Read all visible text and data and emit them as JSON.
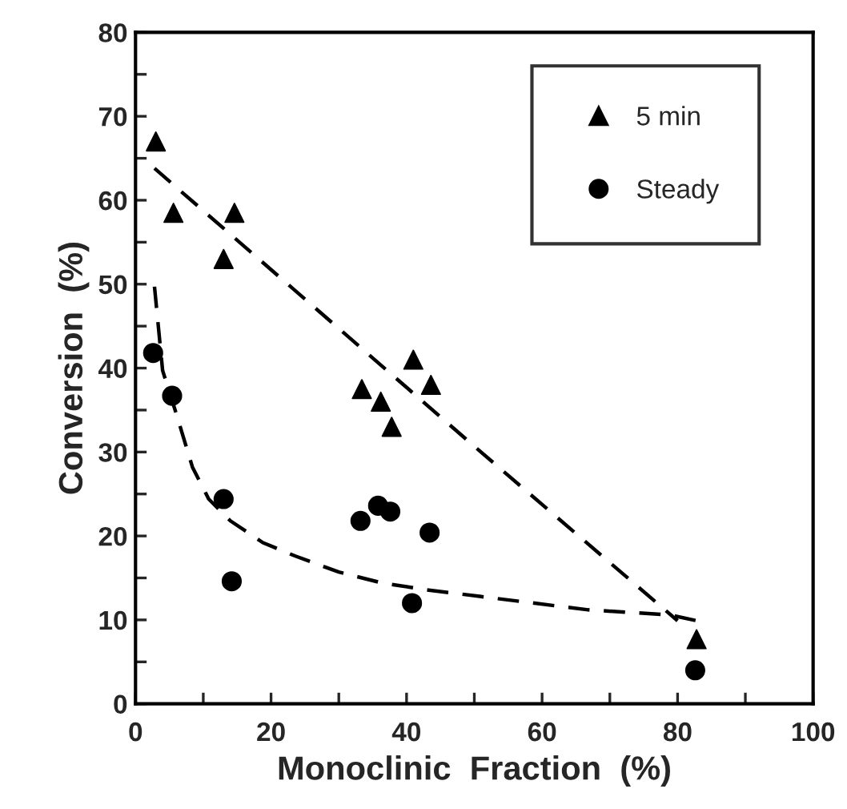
{
  "chart_data": {
    "type": "scatter",
    "xlabel": "Monoclinic  Fraction  (%)",
    "ylabel": "Conversion  (%)",
    "xlim": [
      0,
      100
    ],
    "xticks": [
      0,
      20,
      40,
      60,
      80,
      100
    ],
    "ylim": [
      0,
      80
    ],
    "yticks": [
      0,
      10,
      20,
      30,
      40,
      50,
      60,
      70,
      80
    ],
    "grid": false,
    "legend": "top right",
    "series": [
      {
        "name": "5 min",
        "marker": "triangle",
        "color": "#000000",
        "x": [
          3.0,
          5.6,
          14.6,
          13,
          33.4,
          36.2,
          37.8,
          41,
          43.6,
          82.8
        ],
        "values": [
          67,
          58.5,
          58.5,
          53,
          37.5,
          36,
          33,
          41,
          38,
          7.7
        ]
      },
      {
        "name": "Steady",
        "marker": "circle",
        "color": "#000000",
        "x": [
          2.6,
          5.4,
          13,
          14.2,
          33.2,
          35.8,
          37.6,
          43.4,
          40.8,
          82.6
        ],
        "values": [
          41.8,
          36.7,
          24.4,
          14.6,
          21.8,
          23.6,
          22.9,
          20.4,
          12.0,
          4.0
        ]
      },
      {
        "type": "line",
        "line_style": "dashed",
        "marker": "none",
        "color": "#000000",
        "x": [
          2.8,
          50.4,
          80
        ],
        "values": [
          63.8,
          30.4,
          9.9
        ]
      },
      {
        "type": "line",
        "line_style": "dashed",
        "marker": "none",
        "color": "#000000",
        "x": [
          2.8,
          4,
          6,
          8.4,
          10.8,
          14,
          18.8,
          23.6,
          30,
          36.4,
          42.8,
          50.8,
          66.8,
          78.8,
          82.8
        ],
        "values": [
          49.7,
          39.7,
          34.6,
          28.2,
          24.4,
          21.8,
          19.2,
          17.6,
          15.7,
          14.4,
          13.6,
          12.8,
          11.2,
          10.6,
          9.9
        ]
      }
    ]
  }
}
